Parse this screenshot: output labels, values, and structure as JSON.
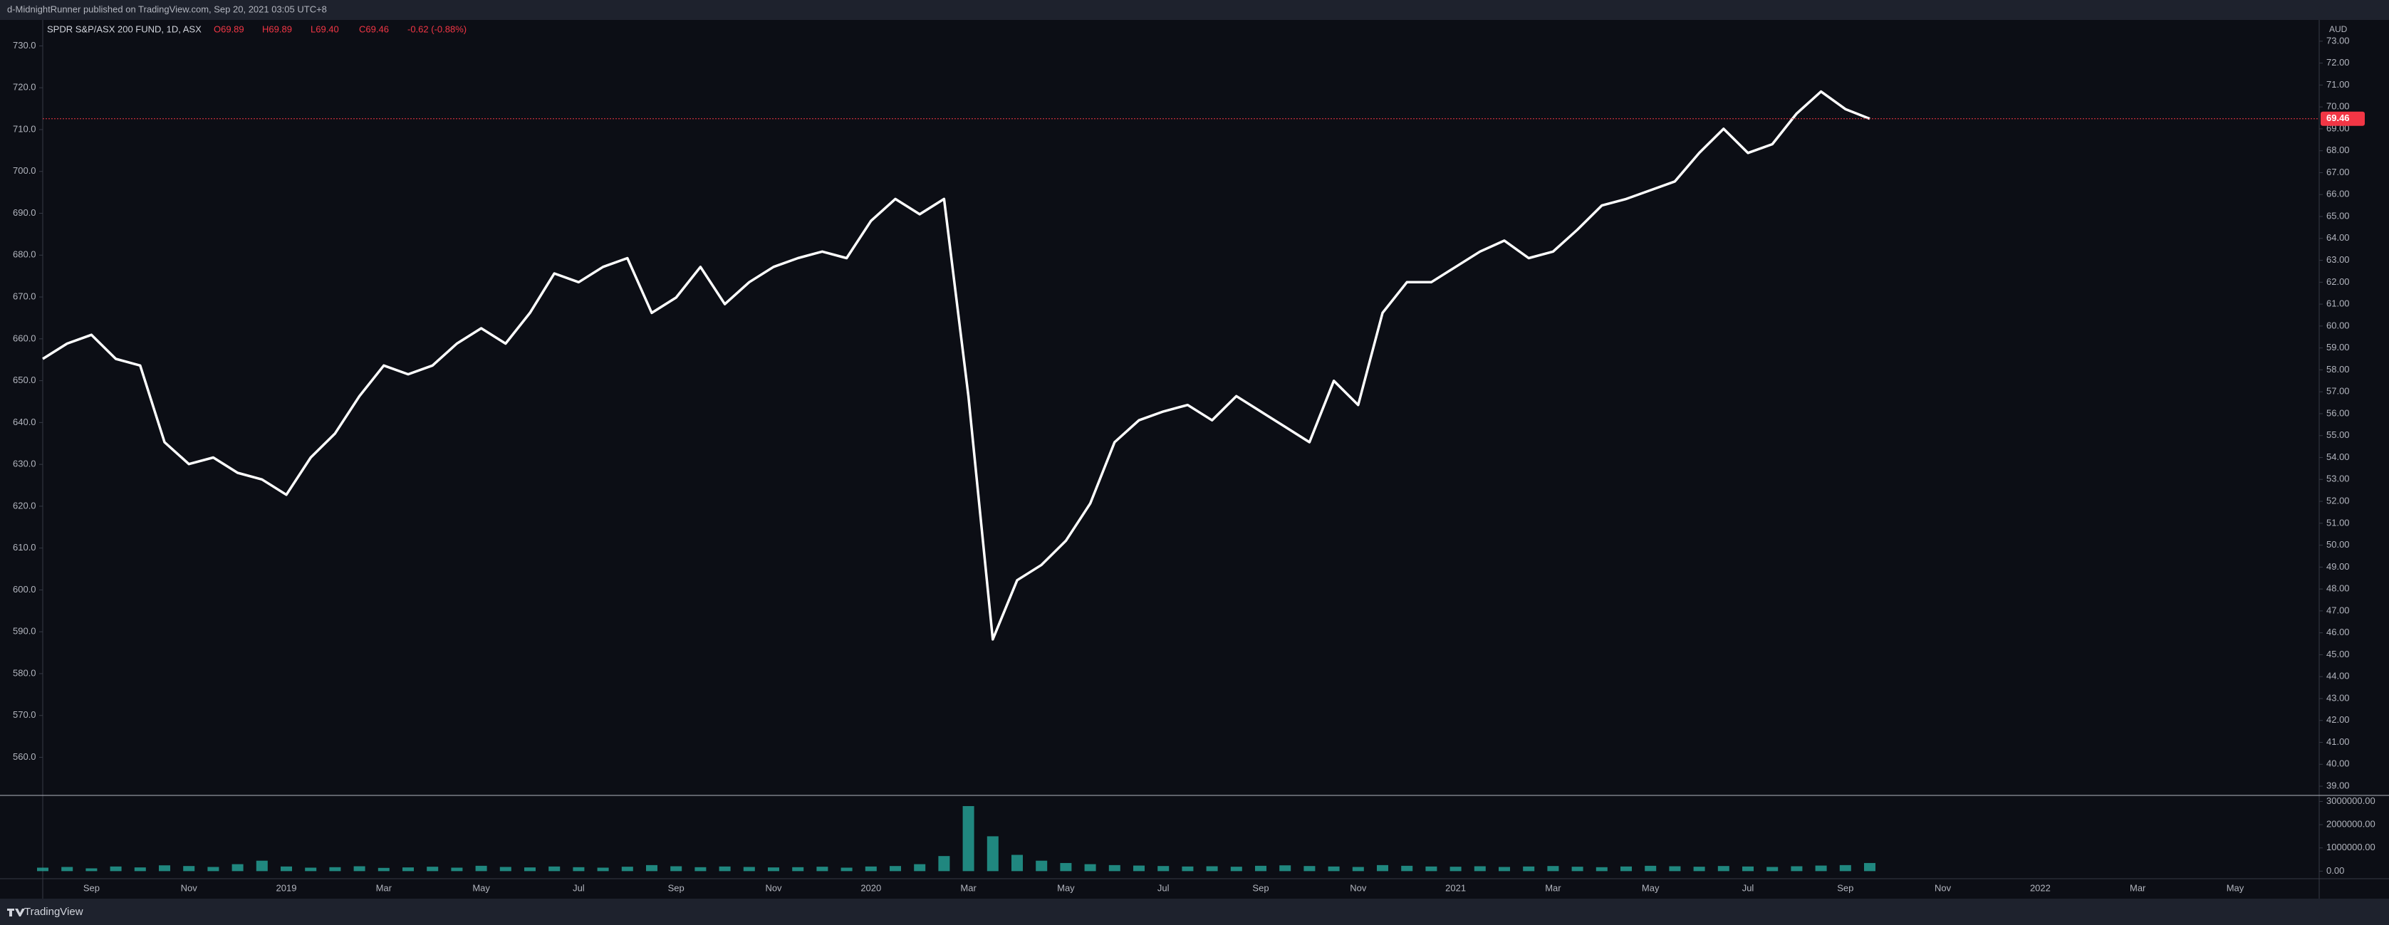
{
  "header": {
    "publisher": "d-MidnightRunner published on TradingView.com, Sep 20, 2021 03:05 UTC+8"
  },
  "footer": {
    "brand": "TradingView"
  },
  "chart_data": {
    "type": "line",
    "title": "SPDR S&P/ASX 200 FUND, 1D, ASX",
    "legend_values": [
      "O69.89",
      "H69.89",
      "L69.40",
      "C69.46",
      "-0.62 (-0.88%)"
    ],
    "y_unit": "AUD",
    "categories": [
      null,
      null,
      "Sep",
      null,
      null,
      null,
      "Nov",
      null,
      null,
      null,
      "2019",
      null,
      null,
      null,
      "Mar",
      null,
      null,
      null,
      "May",
      null,
      null,
      null,
      "Jul",
      null,
      null,
      null,
      "Sep",
      null,
      null,
      null,
      "Nov",
      null,
      null,
      null,
      "2020",
      null,
      null,
      null,
      "Mar",
      null,
      null,
      null,
      "May",
      null,
      null,
      null,
      "Jul",
      null,
      null,
      null,
      "Sep",
      null,
      null,
      null,
      "Nov",
      null,
      null,
      null,
      "2021",
      null,
      null,
      null,
      "Mar",
      null,
      null,
      null,
      "May",
      null,
      null,
      null,
      "Jul",
      null,
      null,
      null,
      "Sep",
      null,
      null,
      null,
      "Nov",
      null,
      null,
      null,
      "2022",
      null,
      null,
      null,
      "Mar",
      null,
      null,
      null,
      "May",
      null,
      null,
      null
    ],
    "series": [
      {
        "color": "#ffffff",
        "values": [
          58.5,
          59.2,
          59.6,
          58.5,
          58.2,
          54.7,
          53.7,
          54.0,
          53.3,
          53.0,
          52.3,
          54.0,
          55.1,
          56.8,
          58.2,
          57.8,
          58.2,
          59.2,
          59.9,
          59.2,
          60.6,
          62.4,
          62.0,
          62.7,
          63.1,
          60.6,
          61.3,
          62.7,
          61.0,
          62.0,
          62.7,
          63.1,
          63.4,
          63.1,
          64.8,
          65.8,
          65.1,
          65.8,
          56.8,
          45.7,
          48.4,
          49.1,
          50.2,
          51.9,
          54.7,
          55.7,
          56.1,
          56.4,
          55.7,
          56.8,
          56.1,
          55.4,
          54.7,
          57.5,
          56.4,
          60.6,
          62.0,
          62.0,
          62.7,
          63.4,
          63.9,
          63.1,
          63.4,
          64.4,
          65.5,
          65.8,
          66.2,
          66.6,
          67.9,
          69.0,
          67.9,
          68.3,
          69.7,
          70.7,
          69.9,
          69.46,
          null,
          null,
          null,
          null,
          null,
          null,
          null,
          null,
          null,
          null,
          null,
          null,
          null,
          null,
          null,
          null,
          null,
          null
        ]
      },
      {
        "color": "#26a69a",
        "axis": "volume",
        "values": [
          150000,
          180000,
          120000,
          200000,
          160000,
          250000,
          220000,
          180000,
          300000,
          450000,
          200000,
          150000,
          170000,
          210000,
          140000,
          160000,
          190000,
          150000,
          230000,
          180000,
          160000,
          200000,
          170000,
          150000,
          190000,
          260000,
          210000,
          170000,
          200000,
          180000,
          160000,
          170000,
          190000,
          150000,
          200000,
          220000,
          300000,
          650000,
          2800000,
          1500000,
          700000,
          450000,
          350000,
          300000,
          260000,
          240000,
          220000,
          200000,
          210000,
          190000,
          230000,
          250000,
          220000,
          200000,
          180000,
          260000,
          230000,
          200000,
          190000,
          210000,
          180000,
          200000,
          220000,
          190000,
          170000,
          200000,
          230000,
          210000,
          190000,
          220000,
          200000,
          180000,
          210000,
          240000,
          260000,
          350000,
          null,
          null,
          null,
          null,
          null,
          null,
          null,
          null,
          null,
          null,
          null,
          null,
          null,
          null,
          null,
          null,
          null,
          null
        ]
      }
    ],
    "ylim": [
      38.58,
      73.97
    ],
    "yticks": [
      {
        "value": 39,
        "label": "39.00"
      },
      {
        "value": 40,
        "label": "40.00"
      },
      {
        "value": 41,
        "label": "41.00"
      },
      {
        "value": 42,
        "label": "42.00"
      },
      {
        "value": 43,
        "label": "43.00"
      },
      {
        "value": 44,
        "label": "44.00"
      },
      {
        "value": 45,
        "label": "45.00"
      },
      {
        "value": 46,
        "label": "46.00"
      },
      {
        "value": 47,
        "label": "47.00"
      },
      {
        "value": 48,
        "label": "48.00"
      },
      {
        "value": 49,
        "label": "49.00"
      },
      {
        "value": 50,
        "label": "50.00"
      },
      {
        "value": 51,
        "label": "51.00"
      },
      {
        "value": 52,
        "label": "52.00"
      },
      {
        "value": 53,
        "label": "53.00"
      },
      {
        "value": 54,
        "label": "54.00"
      },
      {
        "value": 55,
        "label": "55.00"
      },
      {
        "value": 56,
        "label": "56.00"
      },
      {
        "value": 57,
        "label": "57.00"
      },
      {
        "value": 58,
        "label": "58.00"
      },
      {
        "value": 59,
        "label": "59.00"
      },
      {
        "value": 60,
        "label": "60.00"
      },
      {
        "value": 61,
        "label": "61.00"
      },
      {
        "value": 62,
        "label": "62.00"
      },
      {
        "value": 63,
        "label": "63.00"
      },
      {
        "value": 64,
        "label": "64.00"
      },
      {
        "value": 65,
        "label": "65.00"
      },
      {
        "value": 66,
        "label": "66.00"
      },
      {
        "value": 67,
        "label": "67.00"
      },
      {
        "value": 68,
        "label": "68.00"
      },
      {
        "value": 69,
        "label": "69.00"
      },
      {
        "value": 70,
        "label": "70.00"
      },
      {
        "value": 71,
        "label": "71.00"
      },
      {
        "value": 72,
        "label": "72.00"
      },
      {
        "value": 73,
        "label": "73.00"
      }
    ],
    "y2lim": [
      550.9,
      736.2
    ],
    "y2ticks": [
      {
        "value": 560,
        "label": "560.0"
      },
      {
        "value": 570,
        "label": "570.0"
      },
      {
        "value": 580,
        "label": "580.0"
      },
      {
        "value": 590,
        "label": "590.0"
      },
      {
        "value": 600,
        "label": "600.0"
      },
      {
        "value": 610,
        "label": "610.0"
      },
      {
        "value": 620,
        "label": "620.0"
      },
      {
        "value": 630,
        "label": "630.0"
      },
      {
        "value": 640,
        "label": "640.0"
      },
      {
        "value": 650,
        "label": "650.0"
      },
      {
        "value": 660,
        "label": "660.0"
      },
      {
        "value": 670,
        "label": "670.0"
      },
      {
        "value": 680,
        "label": "680.0"
      },
      {
        "value": 690,
        "label": "690.0"
      },
      {
        "value": 700,
        "label": "700.0"
      },
      {
        "value": 710,
        "label": "710.0"
      },
      {
        "value": 720,
        "label": "720.0"
      },
      {
        "value": 730,
        "label": "730.0"
      }
    ],
    "volume_ylim": [
      -326000,
      3260000
    ],
    "volume_yticks": [
      {
        "value": 0,
        "label": "0.00"
      },
      {
        "value": 1000000,
        "label": "1000000.00"
      },
      {
        "value": 2000000,
        "label": "2000000.00"
      },
      {
        "value": 3000000,
        "label": "3000000.00"
      }
    ],
    "last_price_color": "#f23645"
  }
}
